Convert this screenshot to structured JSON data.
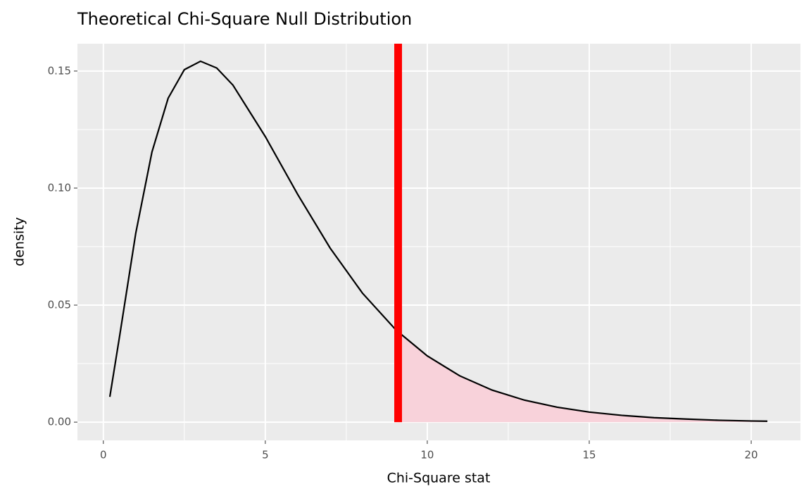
{
  "chart_data": {
    "type": "line",
    "title": "Theoretical Chi-Square Null Distribution",
    "x_label": "Chi-Square stat",
    "y_label": "density",
    "x": [
      0.2,
      0.5,
      1,
      1.5,
      2,
      2.5,
      3,
      3.5,
      4,
      5,
      6,
      7,
      8,
      9,
      9.1,
      10,
      11,
      12,
      13,
      14,
      15,
      16,
      17,
      18,
      19,
      20,
      20.5
    ],
    "series": [
      {
        "name": "density",
        "color": "#000000",
        "values": [
          0.0108,
          0.0366,
          0.0807,
          0.1154,
          0.1384,
          0.1506,
          0.1542,
          0.1513,
          0.144,
          0.122,
          0.0973,
          0.0744,
          0.0551,
          0.0399,
          0.0386,
          0.0283,
          0.0198,
          0.0137,
          0.0094,
          0.0064,
          0.0043,
          0.0029,
          0.0019,
          0.0013,
          0.0008,
          0.0005,
          0.0004
        ]
      }
    ],
    "vline": {
      "value": 9.1,
      "color": "#ff0000"
    },
    "shade_color": "#f8d2da",
    "xlim": [
      -0.8,
      21.52
    ],
    "ylim": [
      -0.0078,
      0.1617
    ],
    "xticks": [
      0,
      5,
      10,
      15,
      20
    ],
    "yticks": [
      {
        "value": 0,
        "label": "0.00"
      },
      {
        "value": 0.05,
        "label": "0.05"
      },
      {
        "value": 0.1,
        "label": "0.10"
      },
      0.15
    ],
    "grid": true
  }
}
